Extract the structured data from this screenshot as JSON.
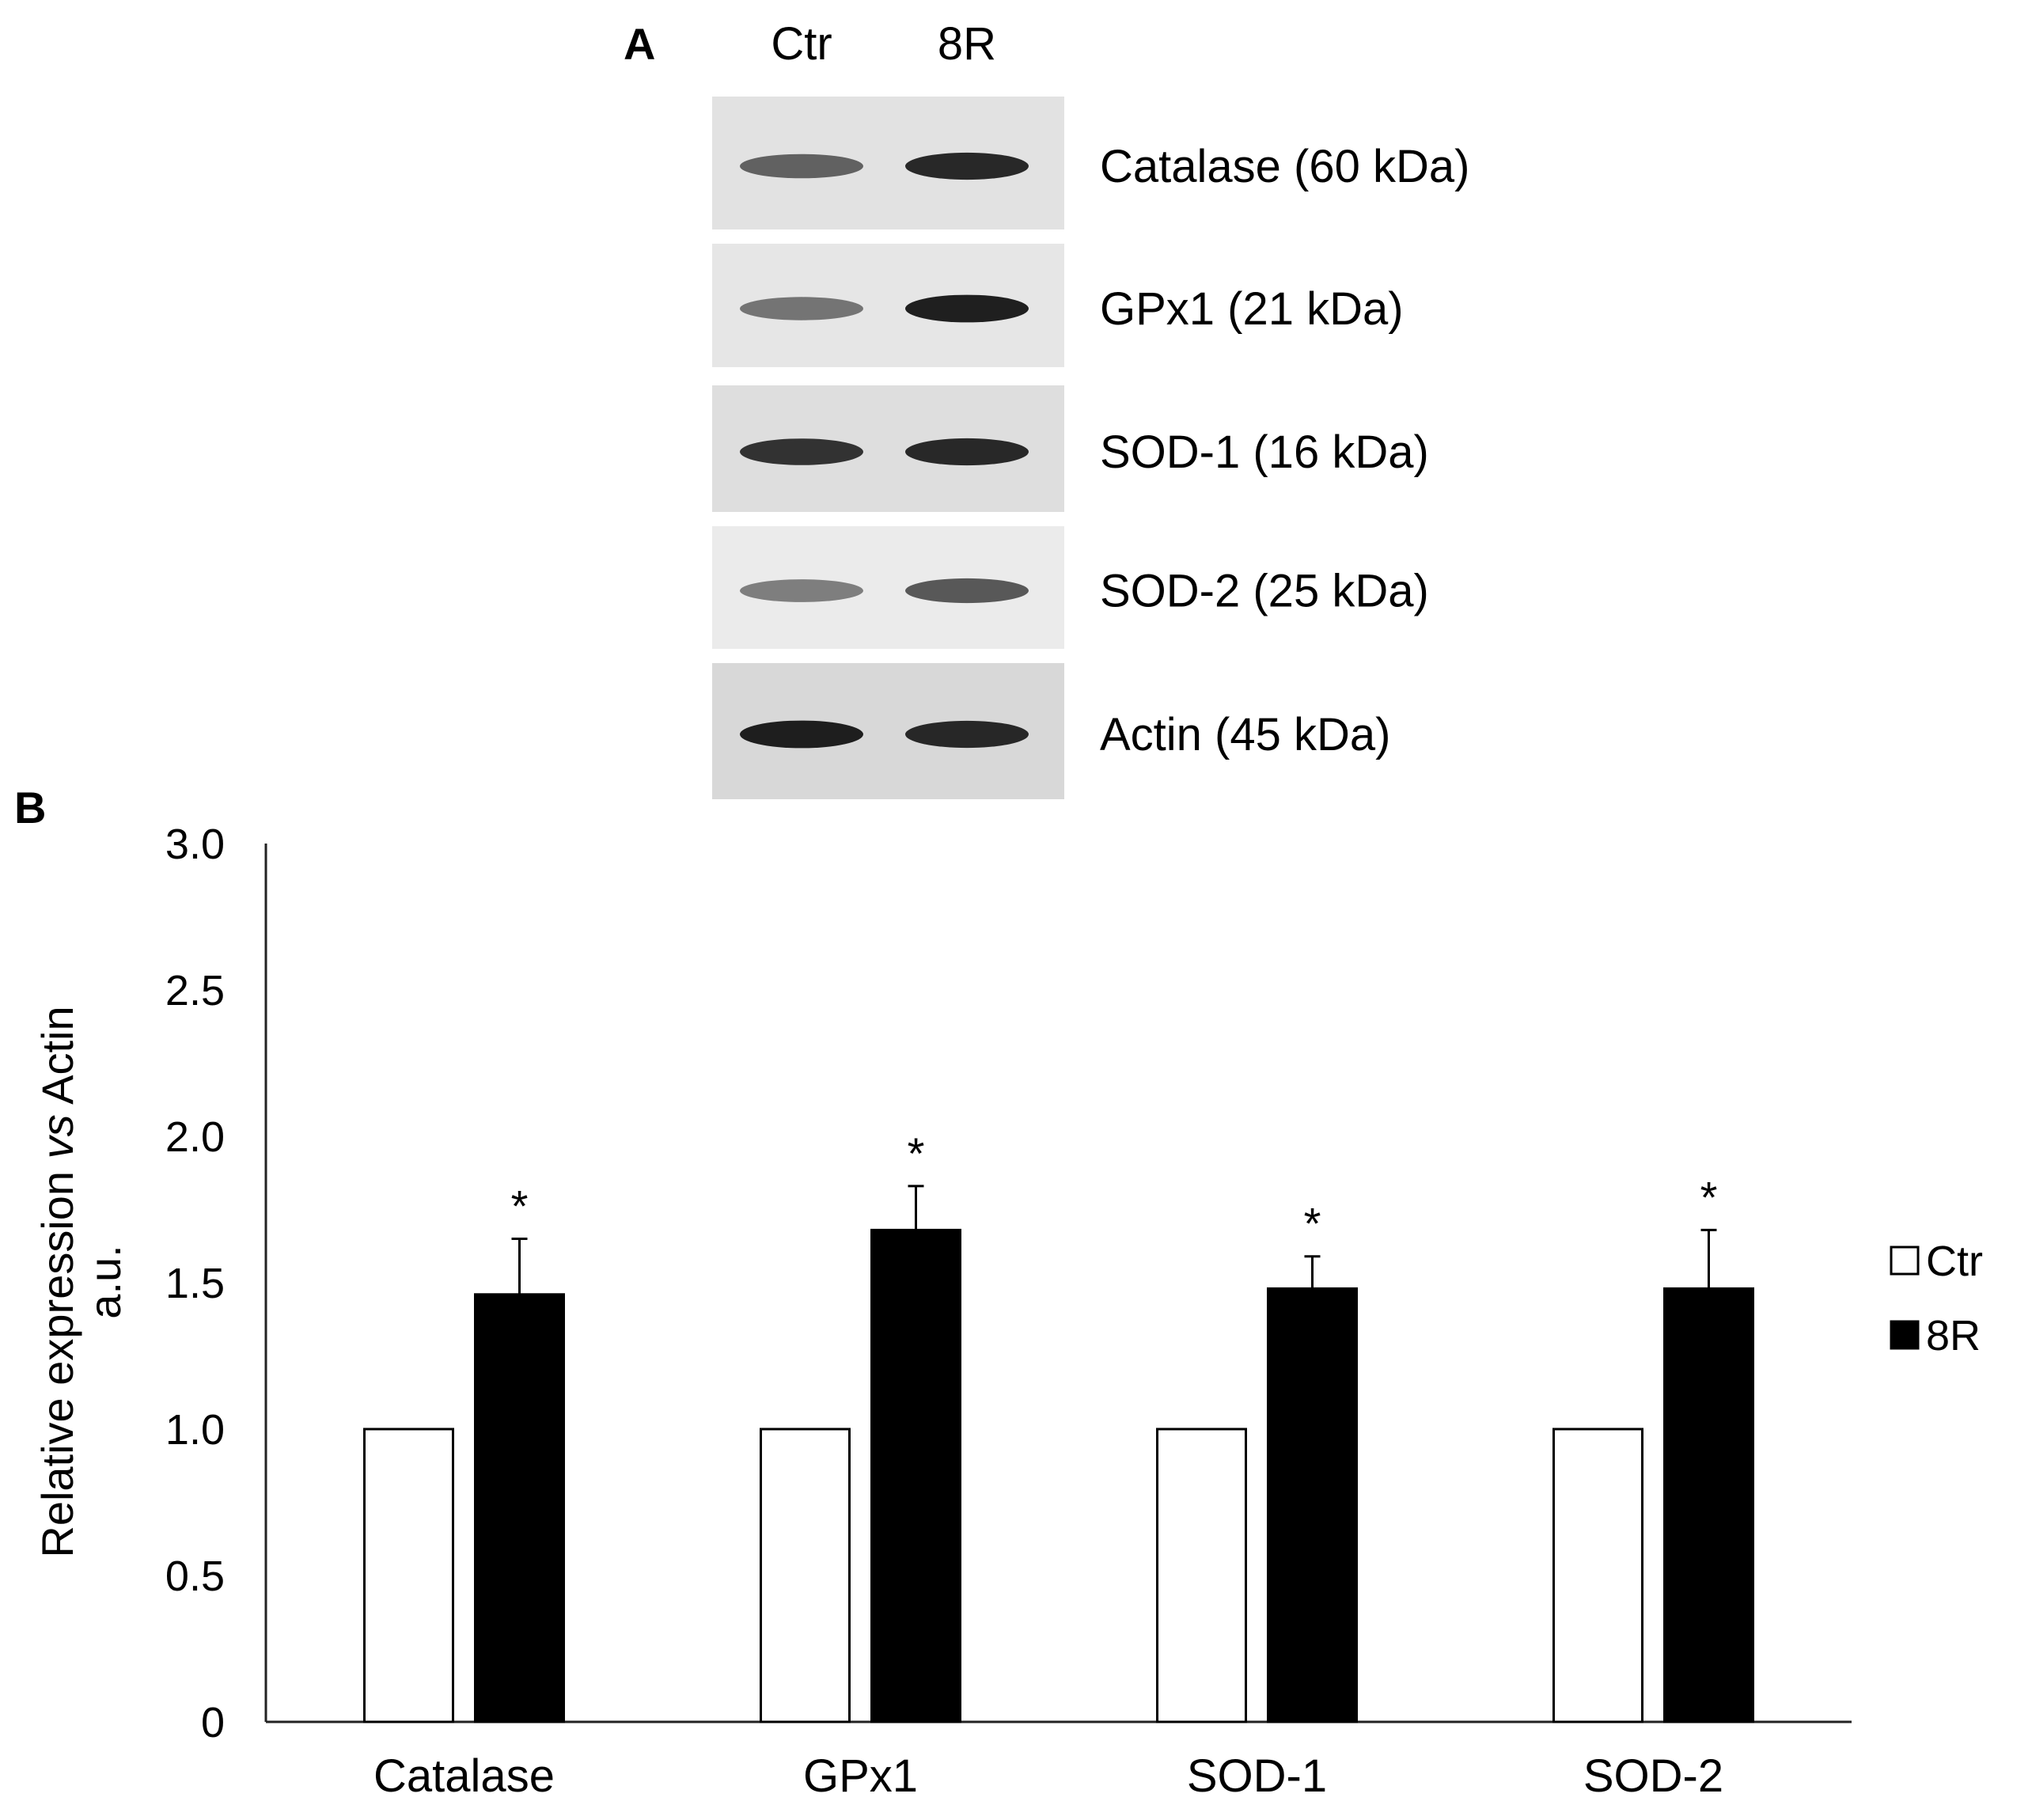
{
  "panel_a": {
    "letter": "A",
    "lanes": [
      "Ctr",
      "8R"
    ],
    "blots": [
      {
        "label": "Catalase (60 kDa)",
        "band_intensity": [
          0.55,
          0.85
        ],
        "background": "#e2e2e2"
      },
      {
        "label": "GPx1 (21 kDa)",
        "band_intensity": [
          0.45,
          0.9
        ],
        "background": "#e6e6e6"
      },
      {
        "label": "SOD-1 (16 kDa)",
        "band_intensity": [
          0.8,
          0.85
        ],
        "background": "#dedede"
      },
      {
        "label": "SOD-2 (25 kDa)",
        "band_intensity": [
          0.4,
          0.6
        ],
        "background": "#ebebeb"
      },
      {
        "label": "Actin (45 kDa)",
        "band_intensity": [
          0.9,
          0.85
        ],
        "background": "#d8d8d8"
      }
    ]
  },
  "panel_b": {
    "letter": "B"
  },
  "chart_data": {
    "type": "bar",
    "title": "",
    "categories": [
      "Catalase",
      "GPx1",
      "SOD-1",
      "SOD-2"
    ],
    "series": [
      {
        "name": "Ctr",
        "values": [
          1.0,
          1.0,
          1.0,
          1.0
        ],
        "fill": "#ffffff",
        "errors": [
          0,
          0,
          0,
          0
        ]
      },
      {
        "name": "8R",
        "values": [
          1.46,
          1.68,
          1.48,
          1.48
        ],
        "fill": "#000000",
        "errors": [
          0.19,
          0.15,
          0.11,
          0.2
        ]
      }
    ],
    "significance": [
      "*",
      "*",
      "*",
      "*"
    ],
    "ylabel_line1_prefix": "Relative expression ",
    "ylabel_line1_italic": "vs",
    "ylabel_line1_suffix": " Actin",
    "ylabel_line2": "a.u.",
    "xlabel": "",
    "ylim": [
      0,
      3.0
    ],
    "yticks": [
      0,
      0.5,
      1.0,
      1.5,
      2.0,
      2.5,
      3.0
    ],
    "ytick_labels": [
      "0",
      "0.5",
      "1.0",
      "1.5",
      "2.0",
      "2.5",
      "3.0"
    ],
    "grid": false,
    "legend_position": "right"
  }
}
